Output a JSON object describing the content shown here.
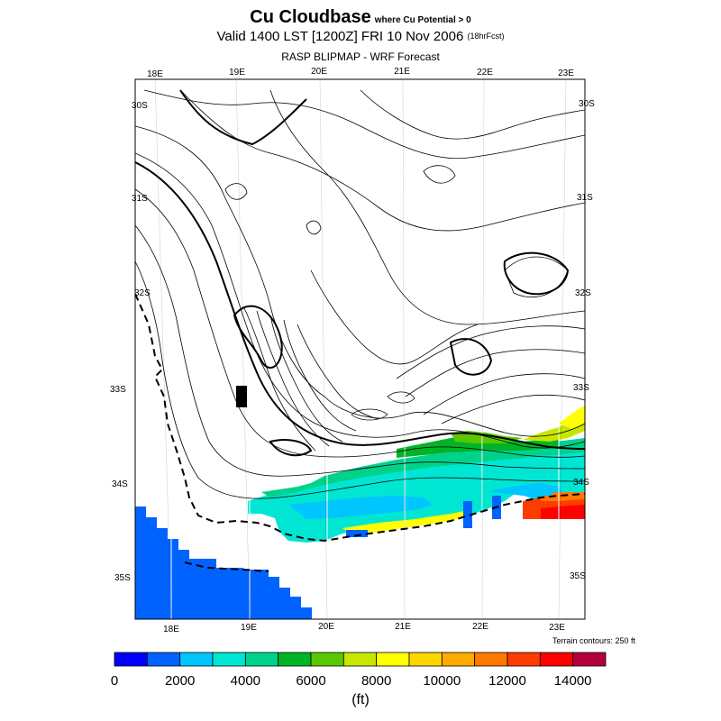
{
  "header": {
    "title": "Cu Cloudbase",
    "condition": "where Cu Potential > 0",
    "valid": "Valid 1400 LST [1200Z] FRI 10 Nov 2006",
    "forecast": "(18hrFcst)",
    "source": "RASP BLIPMAP - WRF Forecast"
  },
  "map": {
    "lon_labels_top": [
      "18E",
      "19E",
      "20E",
      "21E",
      "22E",
      "23E"
    ],
    "lon_labels_bottom": [
      "18E",
      "19E",
      "20E",
      "21E",
      "22E",
      "23E"
    ],
    "lat_labels_left": [
      "30S",
      "31S",
      "32S",
      "33S",
      "34S",
      "35S"
    ],
    "lat_labels_right": [
      "30S",
      "31S",
      "32S",
      "33S",
      "34S",
      "35S"
    ],
    "terrain_note": "Terrain contours: 250 ft"
  },
  "colorbar": {
    "colors": [
      "#0000ff",
      "#0063ff",
      "#00c6ff",
      "#00e6d2",
      "#00d28c",
      "#00b428",
      "#5ac800",
      "#c8e600",
      "#ffff00",
      "#ffd700",
      "#ffaa00",
      "#ff7800",
      "#ff3c00",
      "#ff0000",
      "#b4003c"
    ],
    "tick_labels": [
      "0",
      "2000",
      "4000",
      "6000",
      "8000",
      "10000",
      "12000",
      "14000"
    ],
    "units": "(ft)"
  }
}
